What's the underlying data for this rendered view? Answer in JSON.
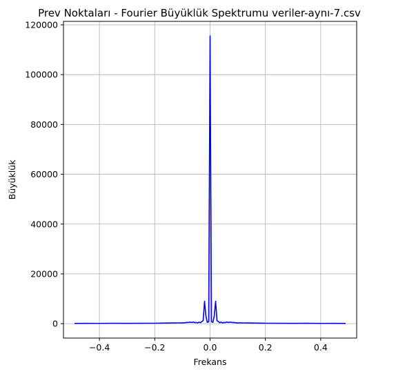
{
  "chart_data": {
    "type": "line",
    "title": "Prev Noktaları - Fourier Büyüklük Spektrumu veriler-aynı-7.csv",
    "xlabel": "Frekans",
    "ylabel": "Büyüklük",
    "xlim": [
      -0.53,
      0.53
    ],
    "ylim": [
      -5780,
      121380
    ],
    "grid": true,
    "xticks": [
      -0.4,
      -0.2,
      0.0,
      0.2,
      0.4
    ],
    "xtick_labels": [
      "−0.4",
      "−0.2",
      "0.0",
      "0.2",
      "0.4"
    ],
    "yticks": [
      0,
      20000,
      40000,
      60000,
      80000,
      100000,
      120000
    ],
    "ytick_labels": [
      "0",
      "20000",
      "40000",
      "60000",
      "80000",
      "100000",
      "120000"
    ],
    "series": [
      {
        "color": "#0000ff",
        "x": [
          -0.49,
          -0.45,
          -0.4,
          -0.35,
          -0.3,
          -0.25,
          -0.2,
          -0.17,
          -0.15,
          -0.13,
          -0.12,
          -0.11,
          -0.1,
          -0.09,
          -0.085,
          -0.08,
          -0.075,
          -0.07,
          -0.065,
          -0.06,
          -0.055,
          -0.05,
          -0.045,
          -0.04,
          -0.035,
          -0.03,
          -0.025,
          -0.02,
          -0.015,
          -0.01,
          -0.005,
          0.0,
          0.005,
          0.01,
          0.015,
          0.02,
          0.025,
          0.03,
          0.035,
          0.04,
          0.045,
          0.05,
          0.055,
          0.06,
          0.065,
          0.07,
          0.075,
          0.08,
          0.085,
          0.09,
          0.1,
          0.11,
          0.12,
          0.13,
          0.15,
          0.17,
          0.2,
          0.25,
          0.3,
          0.35,
          0.4,
          0.45,
          0.49
        ],
        "y": [
          100,
          120,
          110,
          150,
          130,
          160,
          180,
          220,
          250,
          300,
          280,
          350,
          300,
          400,
          500,
          450,
          600,
          550,
          500,
          650,
          400,
          500,
          300,
          600,
          400,
          800,
          1200,
          9000,
          3000,
          500,
          800,
          115500,
          800,
          500,
          3000,
          9000,
          1200,
          800,
          400,
          600,
          300,
          500,
          400,
          650,
          500,
          550,
          600,
          450,
          500,
          400,
          300,
          350,
          280,
          300,
          250,
          220,
          180,
          160,
          130,
          150,
          110,
          120,
          100
        ]
      }
    ]
  }
}
